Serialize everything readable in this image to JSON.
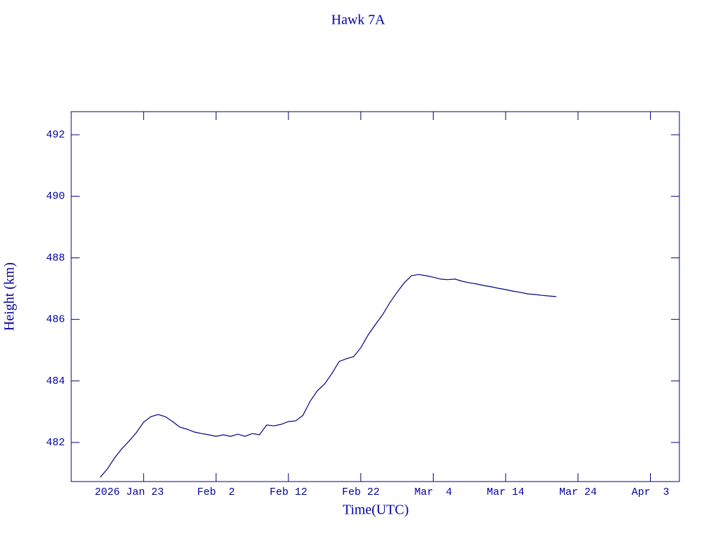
{
  "chart_data": {
    "type": "line",
    "title": "Hawk 7A",
    "x_label": "Time(UTC)",
    "y_label": "Height (km)",
    "x": [
      "2026-01-17",
      "2026-01-18",
      "2026-01-19",
      "2026-01-20",
      "2026-01-21",
      "2026-01-22",
      "2026-01-23",
      "2026-01-24",
      "2026-01-25",
      "2026-01-26",
      "2026-01-27",
      "2026-01-28",
      "2026-01-29",
      "2026-01-30",
      "2026-01-31",
      "2026-02-01",
      "2026-02-02",
      "2026-02-03",
      "2026-02-04",
      "2026-02-05",
      "2026-02-06",
      "2026-02-07",
      "2026-02-08",
      "2026-02-09",
      "2026-02-10",
      "2026-02-11",
      "2026-02-12",
      "2026-02-13",
      "2026-02-14",
      "2026-02-15",
      "2026-02-16",
      "2026-02-17",
      "2026-02-18",
      "2026-02-19",
      "2026-02-20",
      "2026-02-21",
      "2026-02-22",
      "2026-02-23",
      "2026-02-24",
      "2026-02-25",
      "2026-02-26",
      "2026-02-27",
      "2026-02-28",
      "2026-03-01",
      "2026-03-02",
      "2026-03-03",
      "2026-03-04",
      "2026-03-05",
      "2026-03-06",
      "2026-03-07",
      "2026-03-08",
      "2026-03-09",
      "2026-03-10",
      "2026-03-11",
      "2026-03-12",
      "2026-03-13",
      "2026-03-14",
      "2026-03-15",
      "2026-03-16",
      "2026-03-17",
      "2026-03-18",
      "2026-03-19",
      "2026-03-20",
      "2026-03-21"
    ],
    "series": [
      {
        "name": "Hawk 7A",
        "color": "#00007f",
        "values": [
          480.87,
          481.14,
          481.5,
          481.8,
          482.05,
          482.32,
          482.66,
          482.84,
          482.91,
          482.84,
          482.68,
          482.5,
          482.43,
          482.34,
          482.29,
          482.25,
          482.2,
          482.25,
          482.2,
          482.27,
          482.2,
          482.29,
          482.25,
          482.57,
          482.54,
          482.59,
          482.68,
          482.7,
          482.88,
          483.34,
          483.68,
          483.9,
          484.24,
          484.63,
          484.72,
          484.79,
          485.08,
          485.49,
          485.83,
          486.15,
          486.54,
          486.88,
          487.19,
          487.42,
          487.46,
          487.42,
          487.37,
          487.31,
          487.29,
          487.31,
          487.24,
          487.19,
          487.15,
          487.1,
          487.06,
          487.01,
          486.97,
          486.92,
          486.88,
          486.83,
          486.81,
          486.78,
          486.76,
          486.74
        ]
      }
    ],
    "xlim": [
      "2026-01-13",
      "2026-04-07"
    ],
    "xticks": [
      {
        "value": "2026-01-23",
        "label": "2026 Jan 23"
      },
      {
        "value": "2026-02-02",
        "label": "Feb  2"
      },
      {
        "value": "2026-02-12",
        "label": "Feb 12"
      },
      {
        "value": "2026-02-22",
        "label": "Feb 22"
      },
      {
        "value": "2026-03-04",
        "label": "Mar  4"
      },
      {
        "value": "2026-03-14",
        "label": "Mar 14"
      },
      {
        "value": "2026-03-24",
        "label": "Mar 24"
      },
      {
        "value": "2026-04-03",
        "label": "Apr  3"
      }
    ],
    "ylim": [
      480.73,
      492.75
    ],
    "yticks": [
      482,
      484,
      486,
      488,
      490,
      492
    ],
    "axis_color": "#00007f"
  }
}
